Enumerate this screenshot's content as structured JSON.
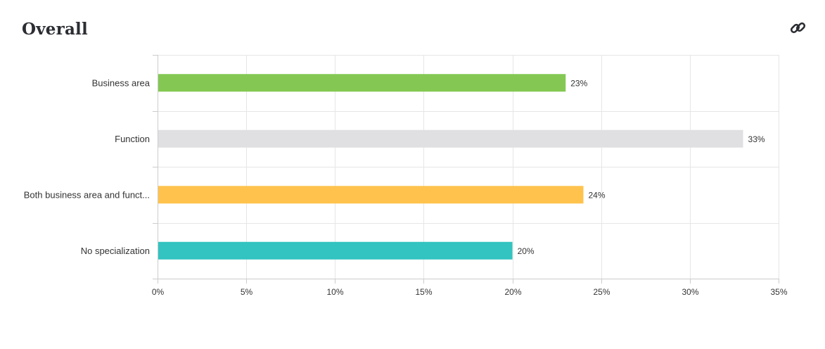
{
  "header": {
    "title": "Overall",
    "link_icon": "link-icon"
  },
  "chart_data": {
    "type": "bar",
    "orientation": "horizontal",
    "title": "Overall",
    "categories": [
      "Business area",
      "Function",
      "Both business area and funct...",
      "No specialization"
    ],
    "values": [
      23,
      33,
      24,
      20
    ],
    "value_labels": [
      "23%",
      "33%",
      "24%",
      "20%"
    ],
    "colors": [
      "#84c853",
      "#e0e0e2",
      "#ffc34d",
      "#33c3c0"
    ],
    "xlim": [
      0,
      35
    ],
    "xticks": [
      0,
      5,
      10,
      15,
      20,
      25,
      30,
      35
    ],
    "xtick_labels": [
      "0%",
      "5%",
      "10%",
      "15%",
      "20%",
      "25%",
      "30%",
      "35%"
    ],
    "xlabel": "",
    "ylabel": "",
    "grid": true,
    "legend": "none"
  }
}
